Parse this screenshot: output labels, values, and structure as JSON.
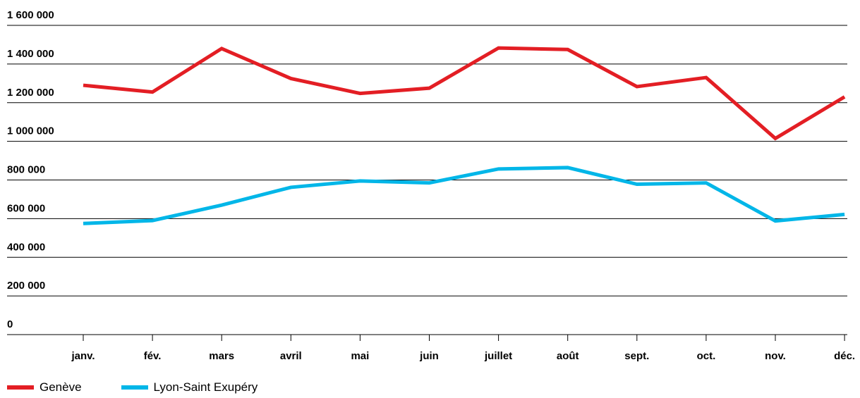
{
  "chart_data": {
    "type": "line",
    "categories": [
      "janv.",
      "fév.",
      "mars",
      "avril",
      "mai",
      "juin",
      "juillet",
      "août",
      "sept.",
      "oct.",
      "nov.",
      "déc."
    ],
    "series": [
      {
        "name": "Genève",
        "color": "#e31e24",
        "values": [
          1290000,
          1255000,
          1480000,
          1325000,
          1248000,
          1275000,
          1483000,
          1475000,
          1283000,
          1330000,
          1015000,
          1230000
        ]
      },
      {
        "name": "Lyon-Saint Exupéry",
        "color": "#00b6e8",
        "values": [
          575000,
          590000,
          670000,
          762000,
          795000,
          785000,
          857000,
          864000,
          778000,
          785000,
          588000,
          622000
        ]
      }
    ],
    "yticks": [
      0,
      200000,
      400000,
      600000,
      800000,
      1000000,
      1200000,
      1400000,
      1600000
    ],
    "ytick_labels": [
      "0",
      "200 000",
      "400 000",
      "600 000",
      "800 000",
      "1 000 000",
      "1 200 000",
      "1 400 000",
      "1 600 000"
    ],
    "ylim": [
      0,
      1600000
    ],
    "grid": true,
    "legend_position": "bottom-left",
    "title": "",
    "xlabel": "",
    "ylabel": ""
  }
}
